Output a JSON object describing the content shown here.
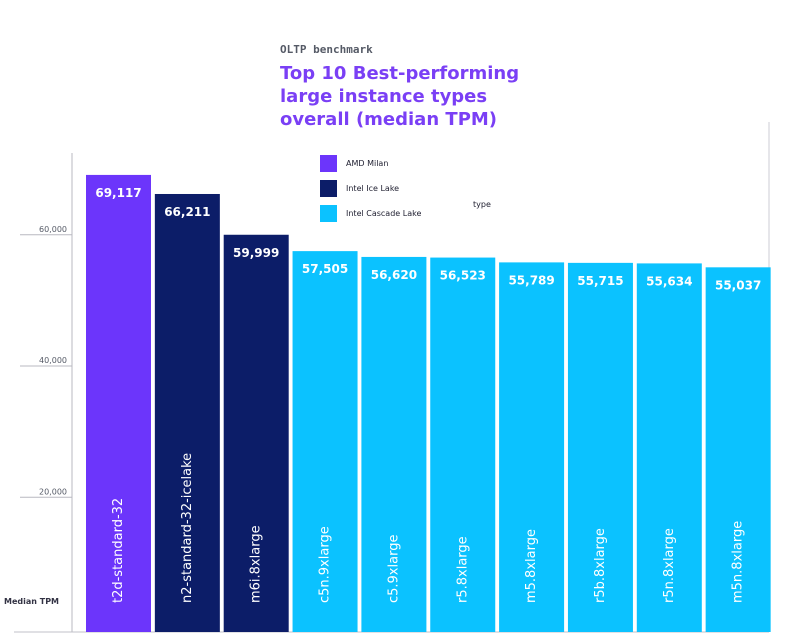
{
  "subtitle": "OLTP benchmark",
  "title": "Top 10 Best-performing large instance types overall (median TPM)",
  "chart_data": {
    "type": "bar",
    "ylabel": "Median TPM",
    "legend_title": "type",
    "legend_placement": "top-center",
    "ylim": [
      0,
      72000
    ],
    "yticks": [
      20000,
      40000,
      60000
    ],
    "ytick_labels": [
      "20,000",
      "40,000",
      "60,000"
    ],
    "series": [
      {
        "name": "AMD Milan",
        "color": "#6c35fb"
      },
      {
        "name": "Intel Ice Lake",
        "color": "#0c1d68"
      },
      {
        "name": "Intel Cascade Lake",
        "color": "#0bc2ff"
      }
    ],
    "categories": [
      "t2d-standard-32",
      "n2-standard-32-icelake",
      "m6i.8xlarge",
      "c5n.9xlarge",
      "c5.9xlarge",
      "r5.8xlarge",
      "m5.8xlarge",
      "r5b.8xlarge",
      "r5n.8xlarge",
      "m5n.8xlarge"
    ],
    "values": [
      69117,
      66211,
      59999,
      57505,
      56620,
      56523,
      55789,
      55715,
      55634,
      55037
    ],
    "value_labels": [
      "69,117",
      "66,211",
      "59,999",
      "57,505",
      "56,620",
      "56,523",
      "55,789",
      "55,715",
      "55,634",
      "55,037"
    ],
    "bar_series": [
      "AMD Milan",
      "Intel Ice Lake",
      "Intel Ice Lake",
      "Intel Cascade Lake",
      "Intel Cascade Lake",
      "Intel Cascade Lake",
      "Intel Cascade Lake",
      "Intel Cascade Lake",
      "Intel Cascade Lake",
      "Intel Cascade Lake"
    ]
  }
}
